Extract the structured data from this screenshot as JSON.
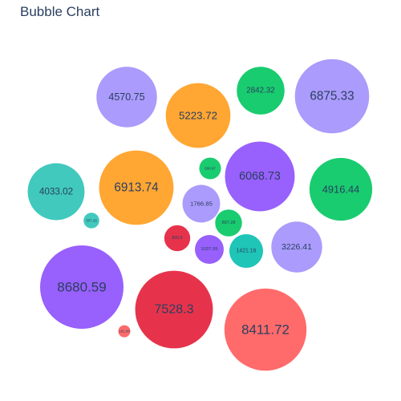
{
  "chart_data": {
    "type": "bubble",
    "title": "Bubble Chart",
    "xlabel": "",
    "ylabel": "",
    "grid": false,
    "legend": "none",
    "points": [
      {
        "value": 4570.75,
        "color": "#ab9bfc"
      },
      {
        "value": 5223.72,
        "color": "#ffa633"
      },
      {
        "value": 2842.32,
        "color": "#19cc6f"
      },
      {
        "value": 6875.33,
        "color": "#ab9bfc"
      },
      {
        "value": 588.87,
        "color": "#19cc6f"
      },
      {
        "value": 6068.73,
        "color": "#9860fc"
      },
      {
        "value": 4916.44,
        "color": "#19cc6f"
      },
      {
        "value": 4033.02,
        "color": "#41c9bd"
      },
      {
        "value": 6913.74,
        "color": "#ffa633"
      },
      {
        "value": 1766.85,
        "color": "#ab9bfc"
      },
      {
        "value": 307.26,
        "color": "#41c9bd"
      },
      {
        "value": 897.28,
        "color": "#19cc6f"
      },
      {
        "value": 839.6,
        "color": "#e6334b"
      },
      {
        "value": 1037.95,
        "color": "#9860fc"
      },
      {
        "value": 1421.16,
        "color": "#1fc5b7"
      },
      {
        "value": 3226.41,
        "color": "#ab9bfc"
      },
      {
        "value": 8680.59,
        "color": "#9860fc"
      },
      {
        "value": 7528.3,
        "color": "#e6334b"
      },
      {
        "value": 182.08,
        "color": "#ff6b6b"
      },
      {
        "value": 8411.72,
        "color": "#ff6b6b"
      }
    ]
  }
}
